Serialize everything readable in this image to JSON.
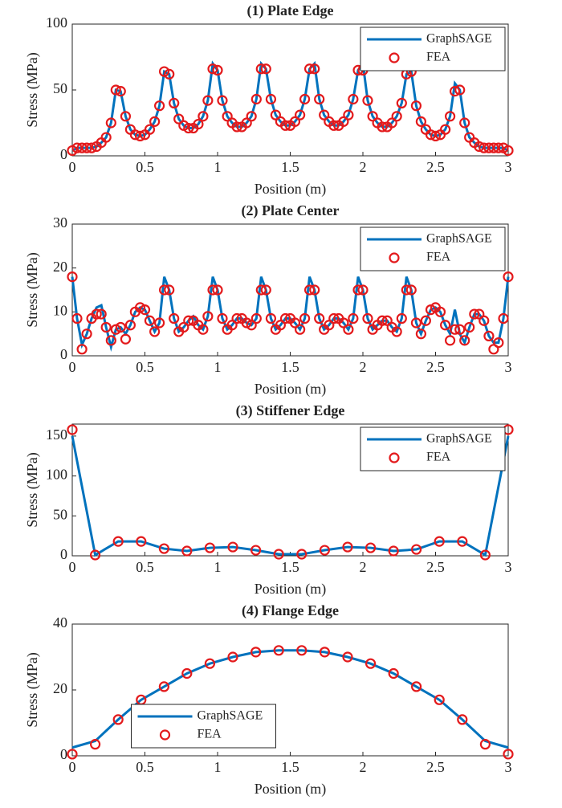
{
  "chart_data": [
    {
      "type": "line",
      "title": "(1) Plate Edge",
      "xlabel": "Position (m)",
      "ylabel": "Stress (MPa)",
      "xlim": [
        0,
        3
      ],
      "xticks": [
        0,
        0.5,
        1,
        1.5,
        2,
        2.5,
        3
      ],
      "ylim": [
        0,
        100
      ],
      "yticks": [
        0,
        50,
        100
      ],
      "legend": "upper right",
      "x": [
        0,
        0.033,
        0.067,
        0.1,
        0.133,
        0.167,
        0.2,
        0.233,
        0.267,
        0.3,
        0.333,
        0.367,
        0.4,
        0.433,
        0.467,
        0.5,
        0.533,
        0.567,
        0.6,
        0.633,
        0.667,
        0.7,
        0.733,
        0.767,
        0.8,
        0.833,
        0.867,
        0.9,
        0.933,
        0.967,
        1,
        1.033,
        1.067,
        1.1,
        1.133,
        1.167,
        1.2,
        1.233,
        1.267,
        1.3,
        1.333,
        1.367,
        1.4,
        1.433,
        1.467,
        1.5,
        1.533,
        1.567,
        1.6,
        1.633,
        1.667,
        1.7,
        1.733,
        1.767,
        1.8,
        1.833,
        1.867,
        1.9,
        1.933,
        1.967,
        2,
        2.033,
        2.067,
        2.1,
        2.133,
        2.167,
        2.2,
        2.233,
        2.267,
        2.3,
        2.333,
        2.367,
        2.4,
        2.433,
        2.467,
        2.5,
        2.533,
        2.567,
        2.6,
        2.633,
        2.667,
        2.7,
        2.733,
        2.767,
        2.8,
        2.833,
        2.867,
        2.9,
        2.933,
        2.967,
        3
      ],
      "series": [
        {
          "name": "GraphSAGE",
          "style": "line",
          "color": "#0072bd",
          "values": [
            4,
            6,
            6,
            6,
            6,
            7,
            10,
            14,
            25,
            50,
            49,
            30,
            20,
            16,
            15,
            16,
            20,
            26,
            38,
            64,
            62,
            40,
            28,
            23,
            21,
            21,
            24,
            30,
            42,
            70,
            65,
            42,
            30,
            25,
            22,
            22,
            25,
            30,
            43,
            70,
            66,
            43,
            31,
            26,
            23,
            23,
            26,
            31,
            43,
            66,
            70,
            43,
            31,
            26,
            23,
            23,
            26,
            31,
            43,
            65,
            70,
            42,
            30,
            25,
            22,
            22,
            25,
            30,
            40,
            62,
            64,
            38,
            26,
            20,
            16,
            15,
            16,
            20,
            30,
            55,
            50,
            25,
            14,
            10,
            7,
            6,
            6,
            6,
            6,
            6,
            4
          ]
        },
        {
          "name": "FEA",
          "style": "markers",
          "color": "#e31a1c",
          "values": [
            4,
            6,
            6,
            6,
            6,
            7,
            10,
            14,
            25,
            50,
            49,
            30,
            20,
            16,
            15,
            16,
            20,
            26,
            38,
            64,
            62,
            40,
            28,
            23,
            21,
            21,
            24,
            30,
            42,
            66,
            65,
            42,
            30,
            25,
            22,
            22,
            25,
            30,
            43,
            66,
            66,
            43,
            31,
            26,
            23,
            23,
            26,
            31,
            43,
            66,
            66,
            43,
            31,
            26,
            23,
            23,
            26,
            31,
            43,
            65,
            65,
            42,
            30,
            25,
            22,
            22,
            25,
            30,
            40,
            62,
            64,
            38,
            26,
            20,
            16,
            15,
            16,
            20,
            30,
            49,
            50,
            25,
            14,
            10,
            7,
            6,
            6,
            6,
            6,
            6,
            4
          ]
        }
      ]
    },
    {
      "type": "line",
      "title": "(2) Plate Center",
      "xlabel": "Position (m)",
      "ylabel": "Stress (MPa)",
      "xlim": [
        0,
        3
      ],
      "xticks": [
        0,
        0.5,
        1,
        1.5,
        2,
        2.5,
        3
      ],
      "ylim": [
        0,
        30
      ],
      "yticks": [
        0,
        10,
        20,
        30
      ],
      "legend": "upper right",
      "x": [
        0,
        0.033,
        0.067,
        0.1,
        0.133,
        0.167,
        0.2,
        0.233,
        0.267,
        0.3,
        0.333,
        0.367,
        0.4,
        0.433,
        0.467,
        0.5,
        0.533,
        0.567,
        0.6,
        0.633,
        0.667,
        0.7,
        0.733,
        0.767,
        0.8,
        0.833,
        0.867,
        0.9,
        0.933,
        0.967,
        1,
        1.033,
        1.067,
        1.1,
        1.133,
        1.167,
        1.2,
        1.233,
        1.267,
        1.3,
        1.333,
        1.367,
        1.4,
        1.433,
        1.467,
        1.5,
        1.533,
        1.567,
        1.6,
        1.633,
        1.667,
        1.7,
        1.733,
        1.767,
        1.8,
        1.833,
        1.867,
        1.9,
        1.933,
        1.967,
        2,
        2.033,
        2.067,
        2.1,
        2.133,
        2.167,
        2.2,
        2.233,
        2.267,
        2.3,
        2.333,
        2.367,
        2.4,
        2.433,
        2.467,
        2.5,
        2.533,
        2.567,
        2.6,
        2.633,
        2.667,
        2.7,
        2.733,
        2.767,
        2.8,
        2.833,
        2.867,
        2.9,
        2.933,
        2.967,
        3
      ],
      "series": [
        {
          "name": "GraphSAGE",
          "style": "line",
          "color": "#0072bd",
          "values": [
            18,
            8.5,
            2.5,
            5,
            8.5,
            11,
            11.5,
            6.5,
            2,
            6,
            6.5,
            5,
            7,
            10,
            11,
            10.5,
            8,
            5.5,
            7.5,
            18,
            15,
            8.5,
            5.5,
            6.5,
            8,
            9,
            7,
            6,
            9,
            18,
            15,
            8.5,
            6,
            7,
            8.5,
            8.5,
            7.5,
            7,
            8.5,
            18,
            15,
            8.5,
            6,
            7,
            8.5,
            8.5,
            7.5,
            6,
            8.5,
            18,
            15,
            8.5,
            6,
            7,
            8.5,
            8.5,
            7.5,
            6,
            8.5,
            18,
            15,
            8.5,
            6,
            7,
            8,
            8,
            6.5,
            5.5,
            8.5,
            18,
            15,
            7.5,
            5,
            8,
            10.5,
            11,
            10,
            7,
            5,
            10.5,
            5,
            3,
            6.5,
            9.5,
            9.5,
            8,
            4.5,
            3,
            3,
            8.5,
            18
          ]
        },
        {
          "name": "FEA",
          "style": "markers",
          "color": "#e31a1c",
          "values": [
            18,
            8.5,
            1.5,
            5,
            8.5,
            9.5,
            9.5,
            6.5,
            3.5,
            6,
            6.5,
            3.8,
            7,
            10,
            11,
            10.5,
            8,
            5.5,
            7.5,
            15,
            15,
            8.5,
            5.5,
            6.5,
            8,
            8,
            7,
            6,
            9,
            15,
            15,
            8.5,
            6,
            7,
            8.5,
            8.5,
            7.5,
            7,
            8.5,
            15,
            15,
            8.5,
            6,
            7,
            8.5,
            8.5,
            7.5,
            6,
            8.5,
            15,
            15,
            8.5,
            6,
            7,
            8.5,
            8.5,
            7.5,
            6,
            8.5,
            15,
            15,
            8.5,
            6,
            7,
            8,
            8,
            6.5,
            5.5,
            8.5,
            15,
            15,
            7.5,
            5,
            8,
            10.5,
            11,
            10,
            7,
            3.5,
            6,
            6,
            3.5,
            6.5,
            9.5,
            9.5,
            8,
            4.5,
            1.5,
            3,
            8.5,
            18
          ]
        }
      ]
    },
    {
      "type": "line",
      "title": "(3) Stiffener Edge",
      "xlabel": "Position (m)",
      "ylabel": "Stress (MPa)",
      "xlim": [
        0,
        3
      ],
      "xticks": [
        0,
        0.5,
        1,
        1.5,
        2,
        2.5,
        3
      ],
      "ylim": [
        0,
        165
      ],
      "yticks": [
        0,
        50,
        100,
        150
      ],
      "legend": "upper right",
      "x": [
        0,
        0.158,
        0.316,
        0.474,
        0.632,
        0.789,
        0.947,
        1.105,
        1.263,
        1.421,
        1.579,
        1.737,
        1.895,
        2.053,
        2.211,
        2.368,
        2.526,
        2.684,
        2.842,
        3
      ],
      "series": [
        {
          "name": "GraphSAGE",
          "style": "line",
          "color": "#0072bd",
          "values": [
            150,
            1,
            18,
            18,
            9,
            6,
            10,
            11,
            7,
            2,
            2,
            7,
            11,
            10,
            6,
            8,
            18,
            18,
            1,
            150
          ]
        },
        {
          "name": "FEA",
          "style": "markers",
          "color": "#e31a1c",
          "values": [
            158,
            1,
            18,
            18,
            9,
            6,
            10,
            11,
            7,
            2,
            2,
            7,
            11,
            10,
            6,
            8,
            18,
            18,
            1,
            158
          ]
        }
      ]
    },
    {
      "type": "line",
      "title": "(4) Flange Edge",
      "xlabel": "Position (m)",
      "ylabel": "Stress (MPa)",
      "xlim": [
        0,
        3
      ],
      "xticks": [
        0,
        0.5,
        1,
        1.5,
        2,
        2.5,
        3
      ],
      "ylim": [
        0,
        40
      ],
      "yticks": [
        0,
        20,
        40
      ],
      "legend": "lower center",
      "x": [
        0,
        0.158,
        0.316,
        0.474,
        0.632,
        0.789,
        0.947,
        1.105,
        1.263,
        1.421,
        1.579,
        1.737,
        1.895,
        2.053,
        2.211,
        2.368,
        2.526,
        2.684,
        2.842,
        3
      ],
      "series": [
        {
          "name": "GraphSAGE",
          "style": "line",
          "color": "#0072bd",
          "values": [
            2.5,
            4.5,
            11,
            17,
            21,
            25,
            28,
            30,
            31.5,
            32,
            32,
            31.5,
            30,
            28,
            25,
            21,
            17,
            11,
            4.5,
            2.5
          ]
        },
        {
          "name": "FEA",
          "style": "markers",
          "color": "#e31a1c",
          "values": [
            0.5,
            3.5,
            11,
            17,
            21,
            25,
            28,
            30,
            31.5,
            32,
            32,
            31.5,
            30,
            28,
            25,
            21,
            17,
            11,
            3.5,
            0.5
          ]
        }
      ]
    }
  ]
}
